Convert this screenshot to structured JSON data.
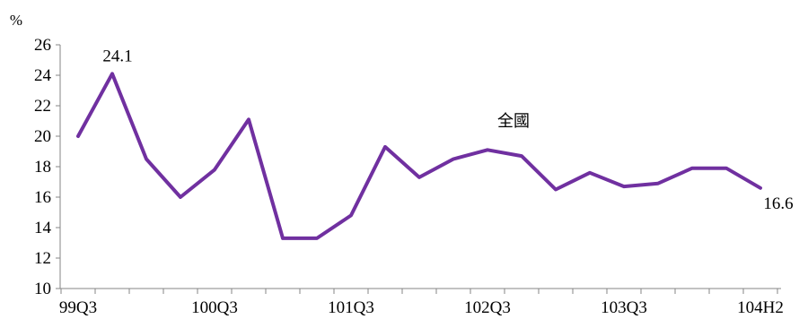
{
  "chart_data": {
    "type": "line",
    "ylabel": "%",
    "ylim": [
      10,
      26
    ],
    "yticks": [
      10,
      12,
      14,
      16,
      18,
      20,
      22,
      24,
      26
    ],
    "x_tick_labels": [
      "99Q3",
      "100Q3",
      "101Q3",
      "102Q3",
      "103Q3",
      "104H2"
    ],
    "grid": false,
    "line_color": "#7030A0",
    "series": [
      {
        "name": "全國",
        "x": [
          "99Q3",
          "99Q4",
          "100Q1",
          "100Q2",
          "100Q3",
          "100Q4",
          "101Q1",
          "101Q2",
          "101Q3",
          "101Q4",
          "102Q1",
          "102Q2",
          "102Q3",
          "102Q4",
          "103Q1",
          "103Q2",
          "103Q3",
          "103Q4",
          "104Q1",
          "104Q2",
          "104H2"
        ],
        "values": [
          20.0,
          24.1,
          18.5,
          16.0,
          17.8,
          21.1,
          13.3,
          13.3,
          14.8,
          19.3,
          17.3,
          18.5,
          19.1,
          18.7,
          16.5,
          17.6,
          16.7,
          16.9,
          17.9,
          17.9,
          16.6
        ]
      }
    ],
    "annotations": [
      {
        "label": "24.1",
        "point_index": 1
      },
      {
        "label": "16.6",
        "point_index": 20
      }
    ]
  }
}
